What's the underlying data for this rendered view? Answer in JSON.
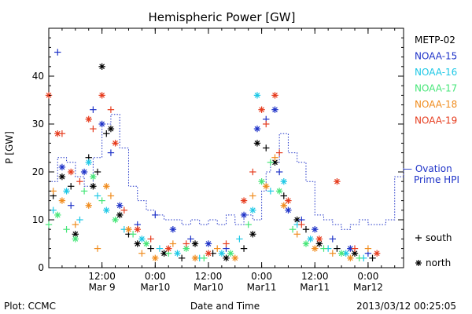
{
  "footer": {
    "plot_credit": "Plot: CCMC",
    "timestamp": "2013/03/12 00:25:05"
  },
  "chart_data": {
    "type": "scatter",
    "title": "Hemispheric Power [GW]",
    "xlabel": "Date and Time",
    "ylabel": "P [GW]",
    "xlim_hours": [
      0,
      80
    ],
    "ylim": [
      0,
      50
    ],
    "y_ticks": [
      0,
      10,
      20,
      30,
      40
    ],
    "x_ticks": [
      {
        "hours": 12,
        "line1": "12:00",
        "line2": "Mar 9"
      },
      {
        "hours": 24,
        "line1": "0:00",
        "line2": "Mar10"
      },
      {
        "hours": 36,
        "line1": "12:00",
        "line2": "Mar10"
      },
      {
        "hours": 48,
        "line1": "0:00",
        "line2": "Mar11"
      },
      {
        "hours": 60,
        "line1": "12:00",
        "line2": "Mar11"
      },
      {
        "hours": 72,
        "line1": "0:00",
        "line2": "Mar12"
      }
    ],
    "grid": false,
    "legend_placement": "right",
    "marker_legend": [
      {
        "symbol": "+",
        "label": "south"
      },
      {
        "symbol": "*",
        "label": "north"
      }
    ],
    "series": [
      {
        "name": "METP-02",
        "color": "#000000",
        "points": [
          {
            "x": 1,
            "y": 15,
            "m": "+"
          },
          {
            "x": 3,
            "y": 19,
            "m": "*"
          },
          {
            "x": 5,
            "y": 17,
            "m": "+"
          },
          {
            "x": 6,
            "y": 7,
            "m": "*"
          },
          {
            "x": 9,
            "y": 23,
            "m": "+"
          },
          {
            "x": 10,
            "y": 17,
            "m": "*"
          },
          {
            "x": 11,
            "y": 20,
            "m": "+"
          },
          {
            "x": 12,
            "y": 42,
            "m": "*"
          },
          {
            "x": 13,
            "y": 28,
            "m": "+"
          },
          {
            "x": 14,
            "y": 29,
            "m": "*"
          },
          {
            "x": 16,
            "y": 11,
            "m": "*"
          },
          {
            "x": 18,
            "y": 7,
            "m": "+"
          },
          {
            "x": 20,
            "y": 5,
            "m": "*"
          },
          {
            "x": 23,
            "y": 4,
            "m": "+"
          },
          {
            "x": 26,
            "y": 3,
            "m": "*"
          },
          {
            "x": 30,
            "y": 2,
            "m": "+"
          },
          {
            "x": 33,
            "y": 5,
            "m": "*"
          },
          {
            "x": 37,
            "y": 3,
            "m": "+"
          },
          {
            "x": 40,
            "y": 2,
            "m": "*"
          },
          {
            "x": 44,
            "y": 4,
            "m": "+"
          },
          {
            "x": 46,
            "y": 7,
            "m": "*"
          },
          {
            "x": 47,
            "y": 26,
            "m": "*"
          },
          {
            "x": 49,
            "y": 25,
            "m": "+"
          },
          {
            "x": 51,
            "y": 22,
            "m": "*"
          },
          {
            "x": 53,
            "y": 15,
            "m": "+"
          },
          {
            "x": 56,
            "y": 10,
            "m": "*"
          },
          {
            "x": 58,
            "y": 8,
            "m": "+"
          },
          {
            "x": 61,
            "y": 5,
            "m": "*"
          },
          {
            "x": 65,
            "y": 4,
            "m": "+"
          },
          {
            "x": 69,
            "y": 3,
            "m": "*"
          },
          {
            "x": 73,
            "y": 2,
            "m": "+"
          }
        ]
      },
      {
        "name": "NOAA-15",
        "color": "#1f33c8",
        "points": [
          {
            "x": 2,
            "y": 45,
            "m": "+"
          },
          {
            "x": 3,
            "y": 21,
            "m": "*"
          },
          {
            "x": 5,
            "y": 13,
            "m": "+"
          },
          {
            "x": 8,
            "y": 20,
            "m": "*"
          },
          {
            "x": 10,
            "y": 33,
            "m": "+"
          },
          {
            "x": 12,
            "y": 30,
            "m": "*"
          },
          {
            "x": 14,
            "y": 24,
            "m": "+"
          },
          {
            "x": 16,
            "y": 13,
            "m": "*"
          },
          {
            "x": 20,
            "y": 9,
            "m": "+"
          },
          {
            "x": 24,
            "y": 11,
            "m": "+"
          },
          {
            "x": 28,
            "y": 8,
            "m": "*"
          },
          {
            "x": 32,
            "y": 6,
            "m": "+"
          },
          {
            "x": 36,
            "y": 5,
            "m": "*"
          },
          {
            "x": 40,
            "y": 4,
            "m": "+"
          },
          {
            "x": 44,
            "y": 11,
            "m": "*"
          },
          {
            "x": 47,
            "y": 29,
            "m": "*"
          },
          {
            "x": 49,
            "y": 31,
            "m": "+"
          },
          {
            "x": 51,
            "y": 33,
            "m": "*"
          },
          {
            "x": 52,
            "y": 20,
            "m": "+"
          },
          {
            "x": 54,
            "y": 12,
            "m": "*"
          },
          {
            "x": 57,
            "y": 10,
            "m": "+"
          },
          {
            "x": 60,
            "y": 8,
            "m": "*"
          },
          {
            "x": 64,
            "y": 6,
            "m": "+"
          },
          {
            "x": 68,
            "y": 4,
            "m": "*"
          },
          {
            "x": 72,
            "y": 3,
            "m": "+"
          }
        ]
      },
      {
        "name": "NOAA-16",
        "color": "#1ec8e6",
        "points": [
          {
            "x": 1,
            "y": 12,
            "m": "+"
          },
          {
            "x": 4,
            "y": 16,
            "m": "*"
          },
          {
            "x": 7,
            "y": 10,
            "m": "+"
          },
          {
            "x": 9,
            "y": 22,
            "m": "*"
          },
          {
            "x": 11,
            "y": 15,
            "m": "+"
          },
          {
            "x": 13,
            "y": 12,
            "m": "*"
          },
          {
            "x": 17,
            "y": 8,
            "m": "+"
          },
          {
            "x": 21,
            "y": 6,
            "m": "*"
          },
          {
            "x": 25,
            "y": 4,
            "m": "+"
          },
          {
            "x": 29,
            "y": 3,
            "m": "*"
          },
          {
            "x": 34,
            "y": 2,
            "m": "+"
          },
          {
            "x": 39,
            "y": 3,
            "m": "*"
          },
          {
            "x": 43,
            "y": 6,
            "m": "+"
          },
          {
            "x": 46,
            "y": 12,
            "m": "*"
          },
          {
            "x": 47,
            "y": 36,
            "m": "*"
          },
          {
            "x": 50,
            "y": 16,
            "m": "+"
          },
          {
            "x": 53,
            "y": 18,
            "m": "*"
          },
          {
            "x": 56,
            "y": 9,
            "m": "+"
          },
          {
            "x": 59,
            "y": 6,
            "m": "*"
          },
          {
            "x": 63,
            "y": 4,
            "m": "+"
          },
          {
            "x": 67,
            "y": 3,
            "m": "*"
          },
          {
            "x": 71,
            "y": 2,
            "m": "+"
          }
        ]
      },
      {
        "name": "NOAA-17",
        "color": "#46e678",
        "points": [
          {
            "x": 0,
            "y": 9,
            "m": "+"
          },
          {
            "x": 2,
            "y": 11,
            "m": "*"
          },
          {
            "x": 4,
            "y": 8,
            "m": "+"
          },
          {
            "x": 6,
            "y": 6,
            "m": "*"
          },
          {
            "x": 8,
            "y": 16,
            "m": "+"
          },
          {
            "x": 10,
            "y": 19,
            "m": "*"
          },
          {
            "x": 12,
            "y": 14,
            "m": "+"
          },
          {
            "x": 15,
            "y": 10,
            "m": "*"
          },
          {
            "x": 19,
            "y": 7,
            "m": "+"
          },
          {
            "x": 22,
            "y": 5,
            "m": "*"
          },
          {
            "x": 27,
            "y": 3,
            "m": "+"
          },
          {
            "x": 31,
            "y": 4,
            "m": "*"
          },
          {
            "x": 35,
            "y": 2,
            "m": "+"
          },
          {
            "x": 41,
            "y": 3,
            "m": "*"
          },
          {
            "x": 45,
            "y": 9,
            "m": "+"
          },
          {
            "x": 48,
            "y": 18,
            "m": "*"
          },
          {
            "x": 50,
            "y": 22,
            "m": "+"
          },
          {
            "x": 52,
            "y": 16,
            "m": "*"
          },
          {
            "x": 55,
            "y": 8,
            "m": "+"
          },
          {
            "x": 58,
            "y": 5,
            "m": "*"
          },
          {
            "x": 62,
            "y": 4,
            "m": "+"
          },
          {
            "x": 66,
            "y": 3,
            "m": "*"
          },
          {
            "x": 70,
            "y": 2,
            "m": "+"
          }
        ]
      },
      {
        "name": "NOAA-18",
        "color": "#f08c1e",
        "points": [
          {
            "x": 1,
            "y": 16,
            "m": "+"
          },
          {
            "x": 3,
            "y": 14,
            "m": "*"
          },
          {
            "x": 6,
            "y": 9,
            "m": "+"
          },
          {
            "x": 9,
            "y": 13,
            "m": "*"
          },
          {
            "x": 11,
            "y": 4,
            "m": "+"
          },
          {
            "x": 13,
            "y": 17,
            "m": "*"
          },
          {
            "x": 14,
            "y": 15,
            "m": "+"
          },
          {
            "x": 18,
            "y": 8,
            "m": "*"
          },
          {
            "x": 21,
            "y": 3,
            "m": "+"
          },
          {
            "x": 24,
            "y": 2,
            "m": "*"
          },
          {
            "x": 28,
            "y": 5,
            "m": "+"
          },
          {
            "x": 33,
            "y": 2,
            "m": "*"
          },
          {
            "x": 38,
            "y": 4,
            "m": "+"
          },
          {
            "x": 42,
            "y": 2,
            "m": "*"
          },
          {
            "x": 46,
            "y": 15,
            "m": "+"
          },
          {
            "x": 49,
            "y": 17,
            "m": "*"
          },
          {
            "x": 51,
            "y": 23,
            "m": "+"
          },
          {
            "x": 53,
            "y": 13,
            "m": "*"
          },
          {
            "x": 56,
            "y": 7,
            "m": "+"
          },
          {
            "x": 60,
            "y": 4,
            "m": "*"
          },
          {
            "x": 64,
            "y": 3,
            "m": "+"
          },
          {
            "x": 68,
            "y": 2,
            "m": "*"
          },
          {
            "x": 72,
            "y": 4,
            "m": "+"
          }
        ]
      },
      {
        "name": "NOAA-19",
        "color": "#e63c1e",
        "points": [
          {
            "x": 0,
            "y": 36,
            "m": "*"
          },
          {
            "x": 2,
            "y": 28,
            "m": "*"
          },
          {
            "x": 3,
            "y": 28,
            "m": "+"
          },
          {
            "x": 5,
            "y": 20,
            "m": "*"
          },
          {
            "x": 7,
            "y": 18,
            "m": "+"
          },
          {
            "x": 9,
            "y": 31,
            "m": "*"
          },
          {
            "x": 10,
            "y": 29,
            "m": "+"
          },
          {
            "x": 12,
            "y": 36,
            "m": "*"
          },
          {
            "x": 14,
            "y": 33,
            "m": "+"
          },
          {
            "x": 15,
            "y": 26,
            "m": "*"
          },
          {
            "x": 17,
            "y": 12,
            "m": "+"
          },
          {
            "x": 20,
            "y": 8,
            "m": "*"
          },
          {
            "x": 23,
            "y": 6,
            "m": "+"
          },
          {
            "x": 27,
            "y": 4,
            "m": "*"
          },
          {
            "x": 31,
            "y": 5,
            "m": "+"
          },
          {
            "x": 36,
            "y": 3,
            "m": "*"
          },
          {
            "x": 40,
            "y": 5,
            "m": "+"
          },
          {
            "x": 44,
            "y": 14,
            "m": "*"
          },
          {
            "x": 46,
            "y": 20,
            "m": "+"
          },
          {
            "x": 48,
            "y": 33,
            "m": "*"
          },
          {
            "x": 49,
            "y": 30,
            "m": "+"
          },
          {
            "x": 51,
            "y": 36,
            "m": "*"
          },
          {
            "x": 52,
            "y": 24,
            "m": "+"
          },
          {
            "x": 54,
            "y": 14,
            "m": "*"
          },
          {
            "x": 57,
            "y": 9,
            "m": "+"
          },
          {
            "x": 61,
            "y": 6,
            "m": "*"
          },
          {
            "x": 65,
            "y": 18,
            "m": "*"
          },
          {
            "x": 69,
            "y": 4,
            "m": "+"
          },
          {
            "x": 74,
            "y": 3,
            "m": "*"
          }
        ]
      }
    ],
    "ovation": {
      "name": "Ovation Prime HPI",
      "legend_line1": "— Ovation",
      "legend_line2": "Prime HPI",
      "color": "#1f33c8",
      "x": [
        0,
        2,
        4,
        6,
        8,
        10,
        12,
        14,
        16,
        18,
        20,
        22,
        24,
        26,
        28,
        30,
        32,
        34,
        36,
        38,
        40,
        42,
        44,
        46,
        48,
        49,
        50,
        52,
        54,
        56,
        58,
        60,
        62,
        64,
        66,
        68,
        70,
        72,
        74,
        76,
        78,
        80
      ],
      "y": [
        18,
        23,
        22,
        19,
        17,
        23,
        30,
        32,
        25,
        17,
        14,
        12,
        11,
        10,
        10,
        9,
        10,
        9,
        10,
        9,
        11,
        9,
        11,
        10,
        16,
        20,
        22,
        28,
        24,
        22,
        18,
        11,
        10,
        9,
        8,
        9,
        10,
        9,
        9,
        10,
        19,
        21
      ]
    }
  }
}
